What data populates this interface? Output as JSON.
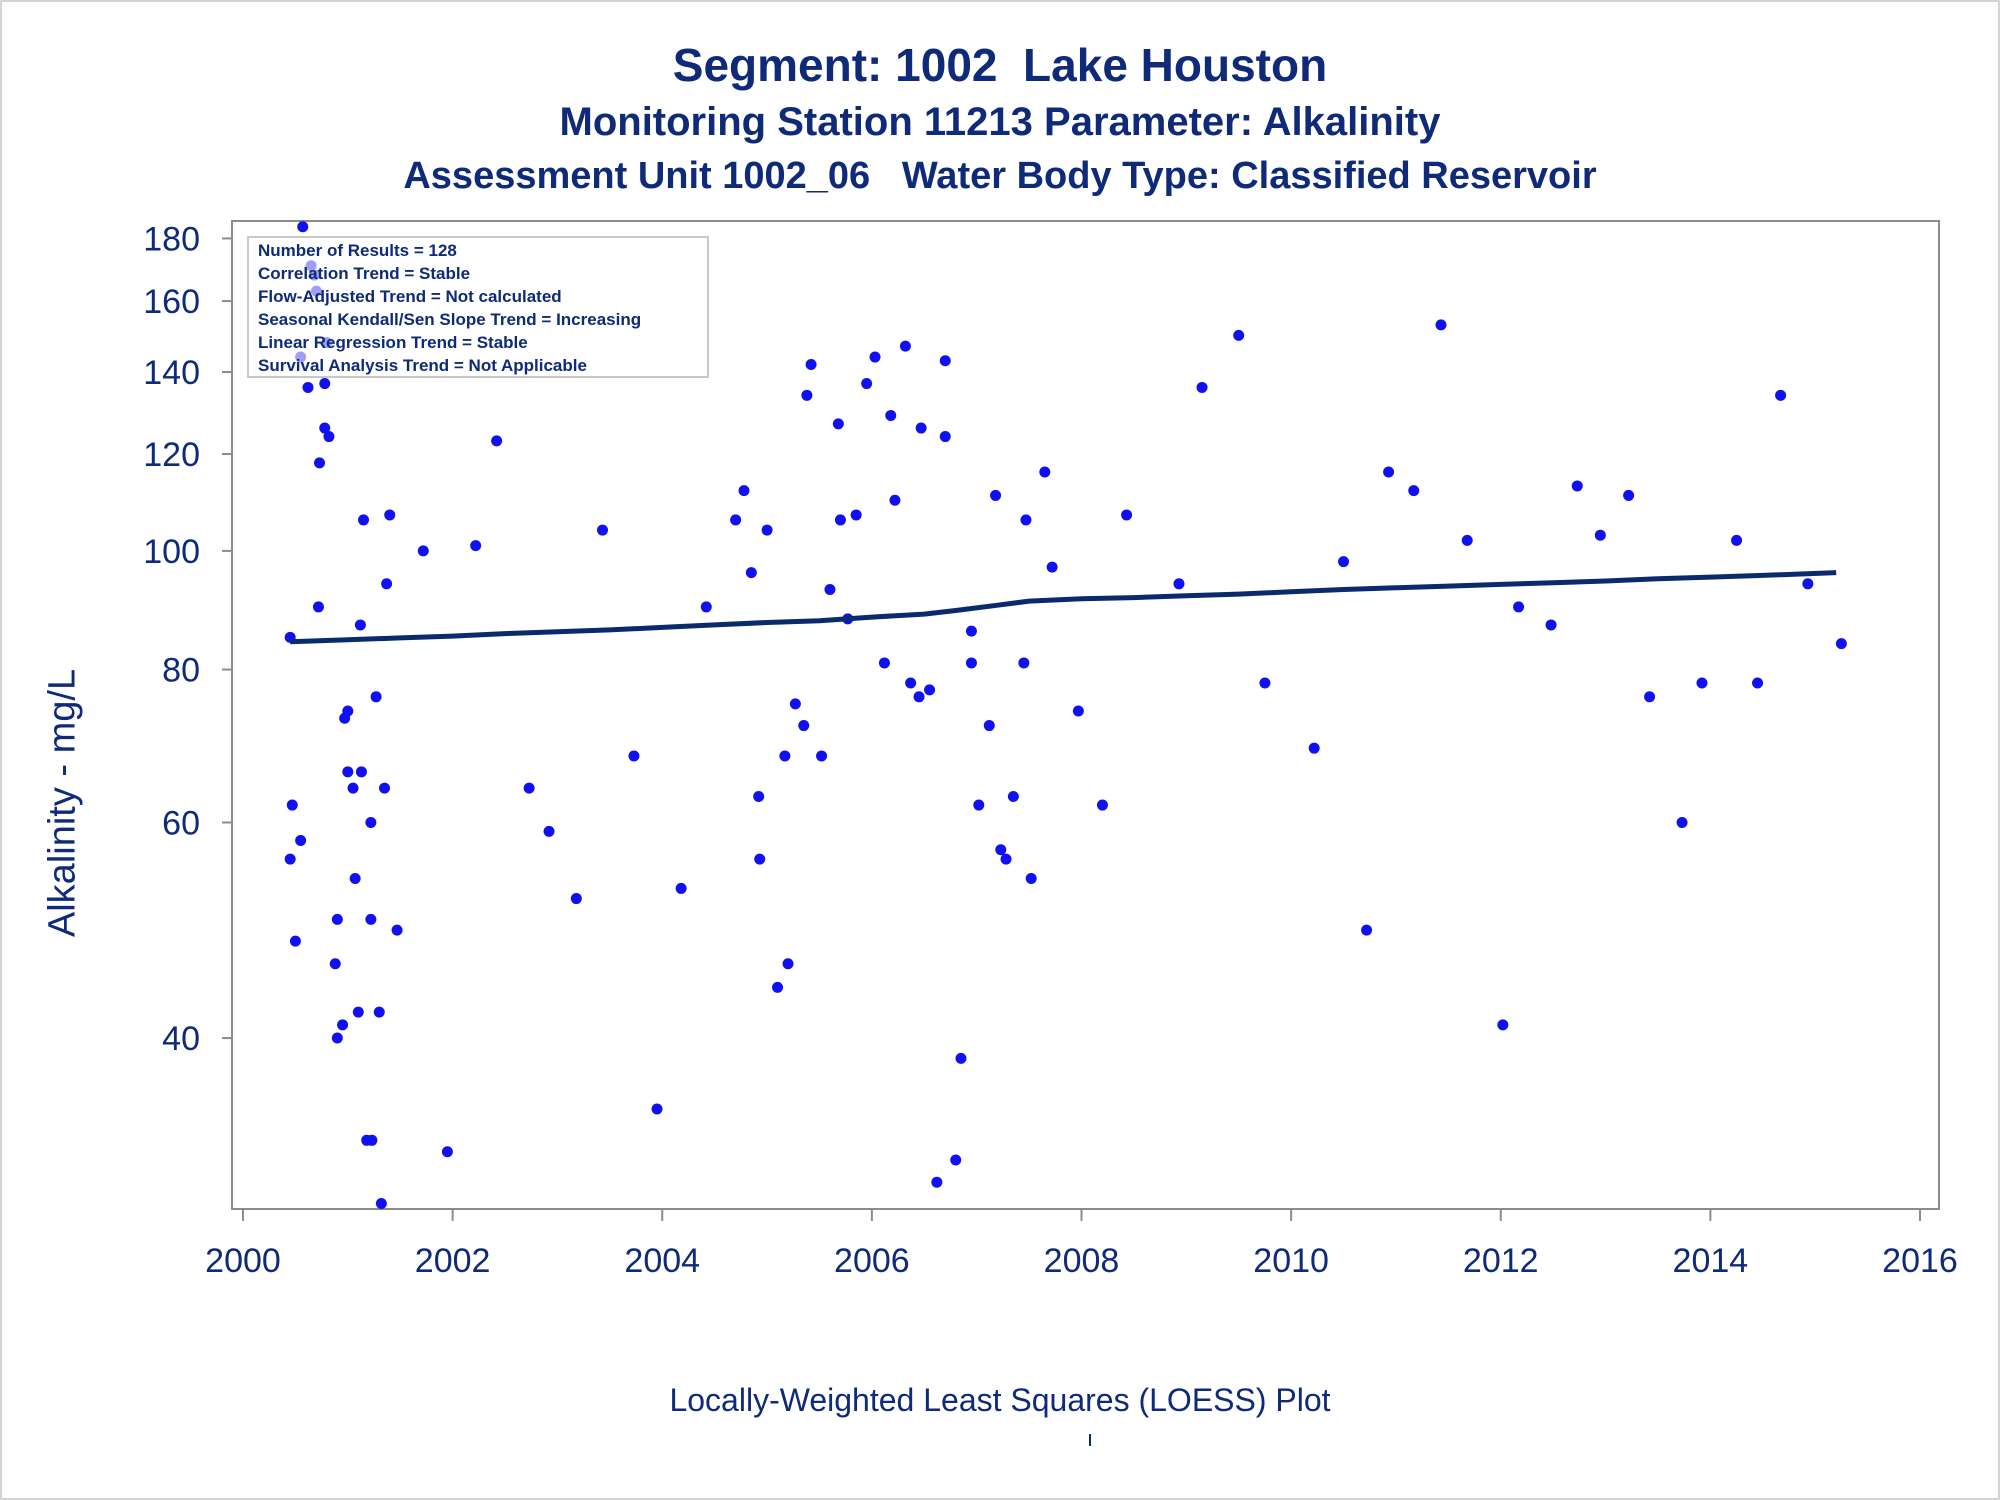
{
  "titles": {
    "line1": "Segment: 1002  Lake Houston",
    "line2": "Monitoring Station 11213 Parameter: Alkalinity",
    "line3": "Assessment Unit 1002_06   Water Body Type: Classified Reservoir"
  },
  "footnote": "Locally-Weighted Least Squares (LOESS) Plot",
  "colors": {
    "text": "#0e2a78",
    "points": "#1010f0",
    "trend": "#0a2a6e",
    "frame": "#8c8c8c"
  },
  "chart_data": {
    "type": "scatter",
    "ylabel": "Alkalinity - mg/L",
    "xlabel": "",
    "y_scale": "log",
    "xlim": [
      2000,
      2016
    ],
    "ylim": [
      29,
      186
    ],
    "x_ticks": [
      2000,
      2002,
      2004,
      2006,
      2008,
      2010,
      2012,
      2014,
      2016
    ],
    "y_ticks": [
      40,
      60,
      80,
      100,
      120,
      140,
      160,
      180
    ],
    "grid": false,
    "legend_position": "top-left",
    "stats": [
      "Number of Results = 128",
      "Correlation Trend = Stable",
      "Flow-Adjusted Trend = Not calculated",
      "Seasonal Kendall/Sen Slope Trend = Increasing",
      "Linear Regression Trend = Stable",
      "Survival Analysis Trend = Not Applicable"
    ],
    "points": [
      [
        2000.45,
        85
      ],
      [
        2000.45,
        56
      ],
      [
        2000.47,
        62
      ],
      [
        2000.5,
        48
      ],
      [
        2000.55,
        58
      ],
      [
        2000.55,
        144
      ],
      [
        2000.57,
        184
      ],
      [
        2000.62,
        136
      ],
      [
        2000.65,
        171
      ],
      [
        2000.68,
        168
      ],
      [
        2000.7,
        163
      ],
      [
        2000.72,
        90
      ],
      [
        2000.73,
        118
      ],
      [
        2000.78,
        126
      ],
      [
        2000.78,
        137
      ],
      [
        2000.8,
        148
      ],
      [
        2000.82,
        124
      ],
      [
        2000.88,
        46
      ],
      [
        2000.9,
        50
      ],
      [
        2000.9,
        40
      ],
      [
        2000.95,
        41
      ],
      [
        2000.97,
        73
      ],
      [
        2001.0,
        74
      ],
      [
        2001.0,
        66
      ],
      [
        2001.05,
        64
      ],
      [
        2001.07,
        54
      ],
      [
        2001.1,
        42
      ],
      [
        2001.12,
        87
      ],
      [
        2001.13,
        66
      ],
      [
        2001.15,
        106
      ],
      [
        2001.18,
        33
      ],
      [
        2001.22,
        60
      ],
      [
        2001.22,
        50
      ],
      [
        2001.23,
        33
      ],
      [
        2001.27,
        76
      ],
      [
        2001.3,
        42
      ],
      [
        2001.32,
        29.3
      ],
      [
        2001.35,
        64
      ],
      [
        2001.37,
        94
      ],
      [
        2001.4,
        107
      ],
      [
        2001.47,
        49
      ],
      [
        2001.72,
        100
      ],
      [
        2001.95,
        32.3
      ],
      [
        2002.22,
        101
      ],
      [
        2002.42,
        123
      ],
      [
        2002.73,
        64
      ],
      [
        2002.92,
        59
      ],
      [
        2003.18,
        52
      ],
      [
        2003.43,
        104
      ],
      [
        2003.73,
        68
      ],
      [
        2003.95,
        35
      ],
      [
        2004.18,
        53
      ],
      [
        2004.42,
        90
      ],
      [
        2004.7,
        106
      ],
      [
        2004.78,
        112
      ],
      [
        2004.85,
        96
      ],
      [
        2004.92,
        63
      ],
      [
        2004.93,
        56
      ],
      [
        2005.0,
        104
      ],
      [
        2005.1,
        44
      ],
      [
        2005.17,
        68
      ],
      [
        2005.2,
        46
      ],
      [
        2005.27,
        75
      ],
      [
        2005.35,
        72
      ],
      [
        2005.38,
        134
      ],
      [
        2005.42,
        142
      ],
      [
        2005.52,
        68
      ],
      [
        2005.6,
        93
      ],
      [
        2005.68,
        127
      ],
      [
        2005.7,
        106
      ],
      [
        2005.77,
        88
      ],
      [
        2005.85,
        107
      ],
      [
        2005.95,
        137
      ],
      [
        2006.03,
        144
      ],
      [
        2006.12,
        81
      ],
      [
        2006.18,
        129
      ],
      [
        2006.22,
        110
      ],
      [
        2006.32,
        147
      ],
      [
        2006.37,
        78
      ],
      [
        2006.45,
        76
      ],
      [
        2006.47,
        126
      ],
      [
        2006.55,
        77
      ],
      [
        2006.62,
        30.5
      ],
      [
        2006.7,
        143
      ],
      [
        2006.7,
        124
      ],
      [
        2006.8,
        31.8
      ],
      [
        2006.85,
        38.5
      ],
      [
        2006.95,
        86
      ],
      [
        2006.95,
        81
      ],
      [
        2007.02,
        62
      ],
      [
        2007.12,
        72
      ],
      [
        2007.18,
        111
      ],
      [
        2007.23,
        57
      ],
      [
        2007.28,
        56
      ],
      [
        2007.35,
        63
      ],
      [
        2007.45,
        81
      ],
      [
        2007.47,
        106
      ],
      [
        2007.52,
        54
      ],
      [
        2007.65,
        116
      ],
      [
        2007.72,
        97
      ],
      [
        2007.97,
        74
      ],
      [
        2008.2,
        62
      ],
      [
        2008.43,
        107
      ],
      [
        2008.93,
        94
      ],
      [
        2009.15,
        136
      ],
      [
        2009.5,
        150
      ],
      [
        2009.75,
        78
      ],
      [
        2010.22,
        69
      ],
      [
        2010.5,
        98
      ],
      [
        2010.72,
        49
      ],
      [
        2010.93,
        116
      ],
      [
        2011.17,
        112
      ],
      [
        2011.43,
        153
      ],
      [
        2011.68,
        102
      ],
      [
        2012.02,
        41
      ],
      [
        2012.17,
        90
      ],
      [
        2012.48,
        87
      ],
      [
        2012.73,
        113
      ],
      [
        2012.95,
        103
      ],
      [
        2013.22,
        111
      ],
      [
        2013.42,
        76
      ],
      [
        2013.73,
        60
      ],
      [
        2013.92,
        78
      ],
      [
        2014.25,
        102
      ],
      [
        2014.45,
        78
      ],
      [
        2014.67,
        134
      ],
      [
        2014.93,
        94
      ],
      [
        2015.25,
        84
      ]
    ],
    "loess": [
      [
        2000.45,
        84.3
      ],
      [
        2001.0,
        84.6
      ],
      [
        2001.5,
        84.9
      ],
      [
        2002.0,
        85.2
      ],
      [
        2002.5,
        85.6
      ],
      [
        2003.0,
        85.9
      ],
      [
        2003.5,
        86.2
      ],
      [
        2004.0,
        86.6
      ],
      [
        2004.5,
        87.0
      ],
      [
        2005.0,
        87.4
      ],
      [
        2005.5,
        87.7
      ],
      [
        2006.0,
        88.3
      ],
      [
        2006.5,
        88.8
      ],
      [
        2006.8,
        89.4
      ],
      [
        2007.2,
        90.3
      ],
      [
        2007.5,
        91.0
      ],
      [
        2008.0,
        91.4
      ],
      [
        2008.5,
        91.6
      ],
      [
        2009.0,
        91.9
      ],
      [
        2009.5,
        92.2
      ],
      [
        2010.0,
        92.6
      ],
      [
        2010.5,
        93.0
      ],
      [
        2011.0,
        93.3
      ],
      [
        2011.5,
        93.6
      ],
      [
        2012.0,
        93.9
      ],
      [
        2012.5,
        94.2
      ],
      [
        2013.0,
        94.5
      ],
      [
        2013.5,
        94.9
      ],
      [
        2014.0,
        95.2
      ],
      [
        2014.5,
        95.5
      ],
      [
        2015.2,
        96.0
      ]
    ]
  }
}
